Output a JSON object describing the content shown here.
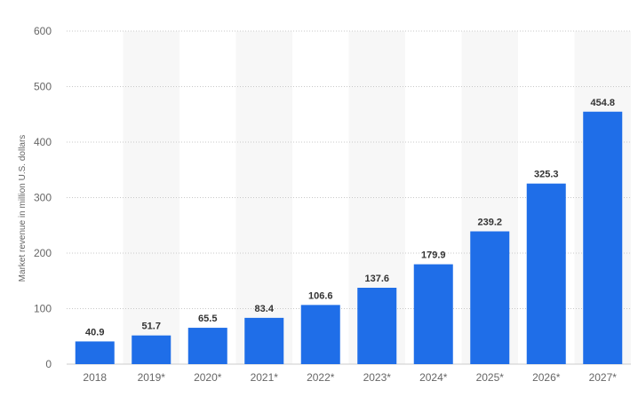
{
  "chart_data": {
    "type": "bar",
    "title": "",
    "xlabel": "",
    "ylabel": "Market revenue in million U.S. dollars",
    "categories": [
      "2018",
      "2019*",
      "2020*",
      "2021*",
      "2022*",
      "2023*",
      "2024*",
      "2025*",
      "2026*",
      "2027*"
    ],
    "values": [
      40.9,
      51.7,
      65.5,
      83.4,
      106.6,
      137.6,
      179.9,
      239.2,
      325.3,
      454.8
    ],
    "value_labels": [
      "40.9",
      "51.7",
      "65.5",
      "83.4",
      "106.6",
      "137.6",
      "179.9",
      "239.2",
      "325.3",
      "454.8"
    ],
    "ylim": [
      0,
      600
    ],
    "yticks": [
      0,
      100,
      200,
      300,
      400,
      500,
      600
    ],
    "grid": true,
    "bar_color": "#1f6ee8",
    "alternate_band_color": "#f7f7f7"
  }
}
